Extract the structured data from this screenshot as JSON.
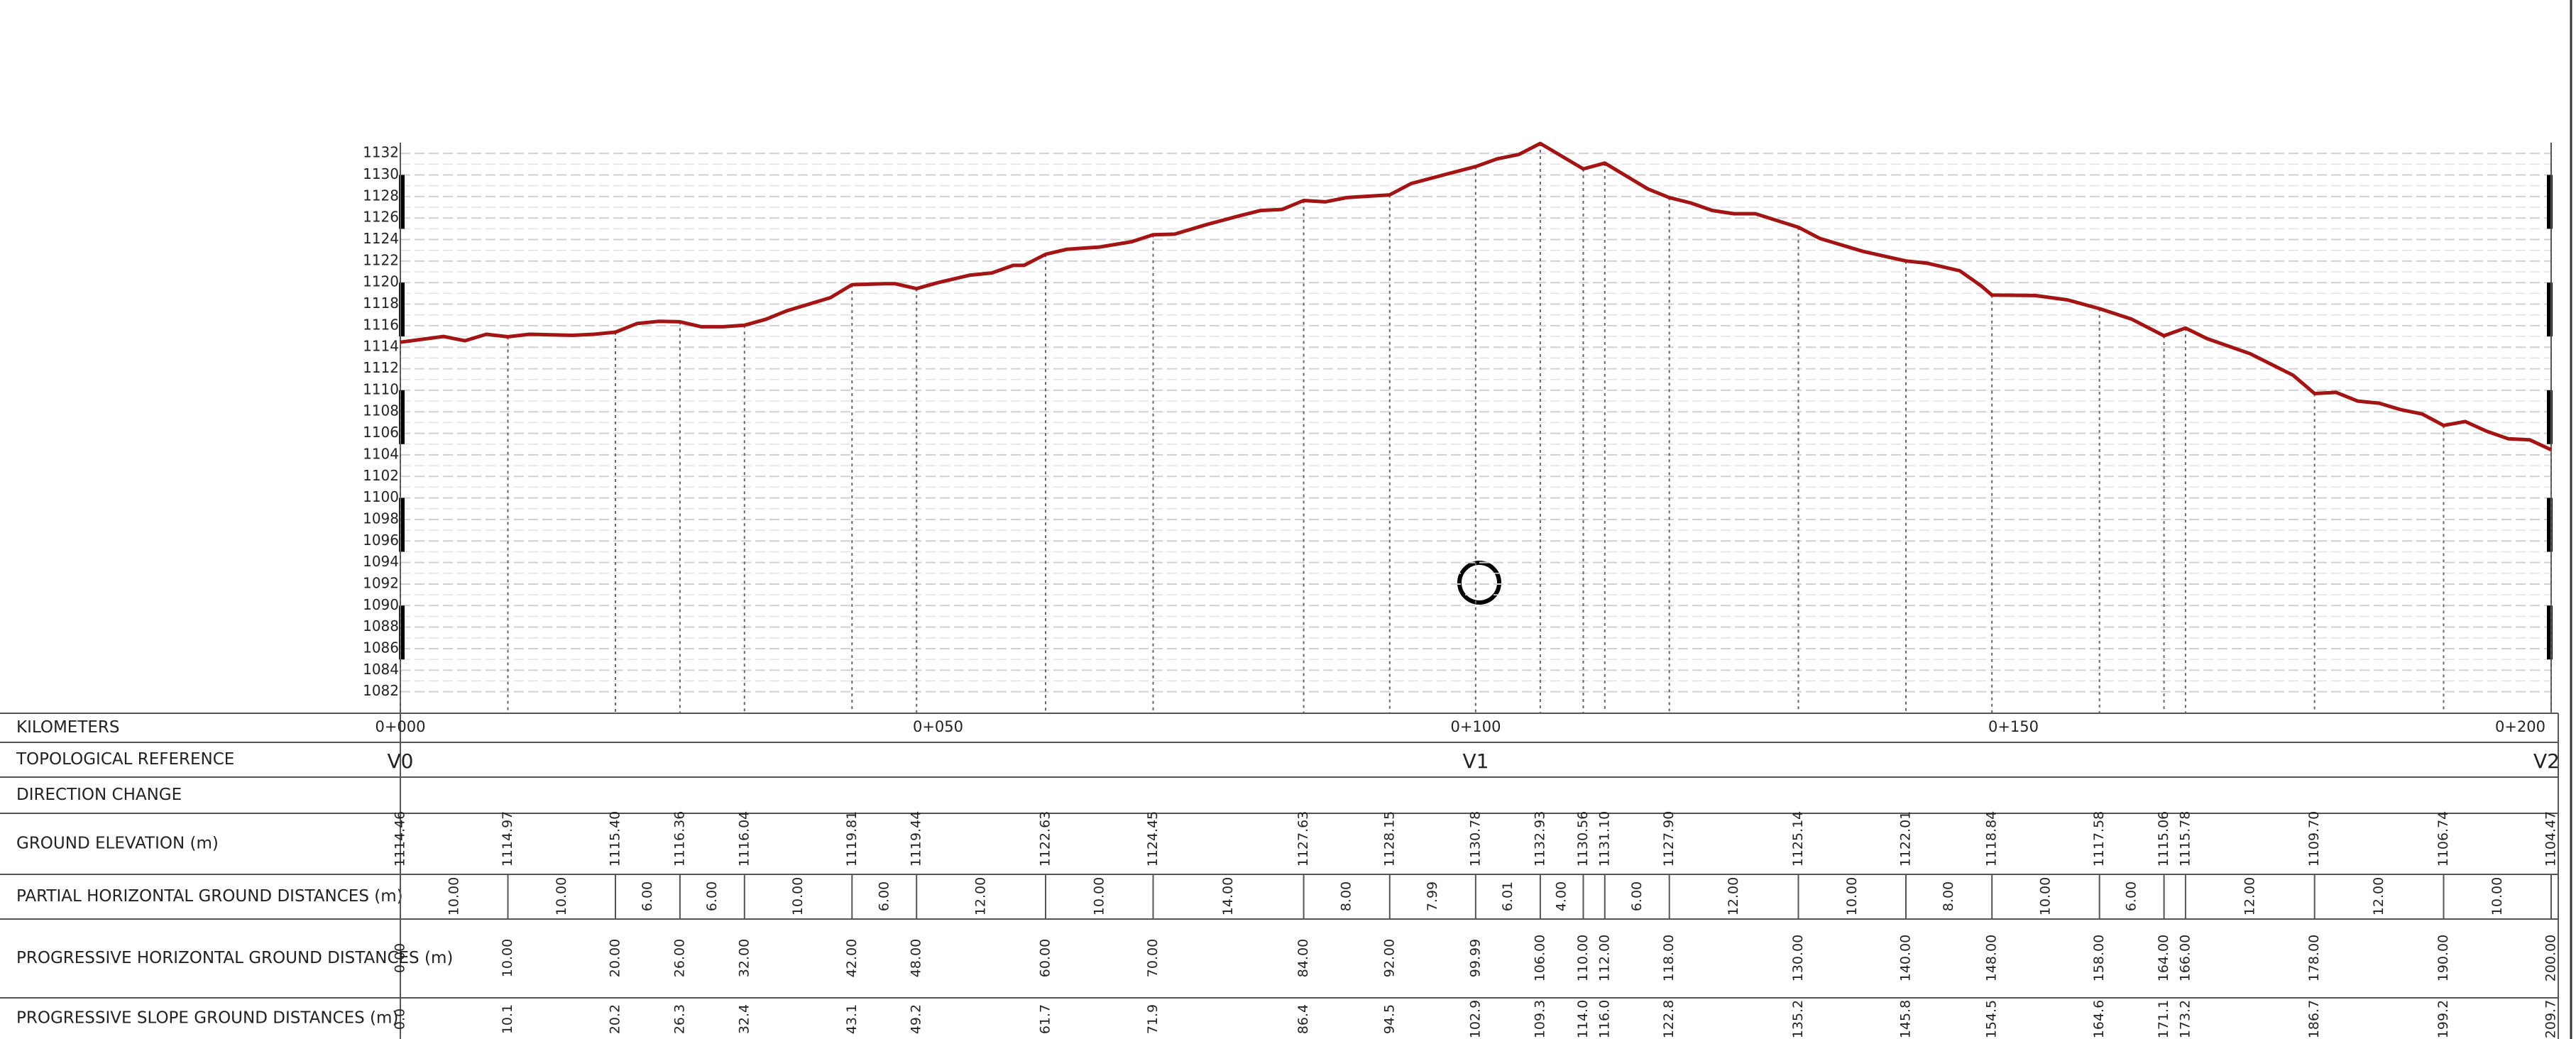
{
  "chart_data": {
    "type": "line",
    "x": [
      0,
      4,
      6,
      8,
      10,
      12,
      16,
      18,
      20,
      22,
      24,
      26,
      28,
      30,
      32,
      34,
      36,
      40,
      42,
      45,
      46,
      48,
      50,
      53,
      55,
      57,
      58,
      60,
      62,
      65,
      68,
      70,
      72,
      75,
      78,
      80,
      82,
      84,
      86,
      88,
      92,
      94,
      97,
      99.99,
      102,
      104,
      106,
      110,
      112,
      114,
      116,
      118,
      120,
      122,
      124,
      126,
      130,
      132,
      136,
      140,
      142,
      145,
      147,
      148,
      152,
      155,
      158,
      161,
      164,
      166,
      168,
      172,
      174,
      176,
      178,
      180,
      182,
      184,
      186,
      188,
      190,
      192,
      194,
      196,
      198,
      200
    ],
    "values": [
      1114.46,
      1115.0,
      1114.6,
      1115.2,
      1114.97,
      1115.2,
      1115.1,
      1115.2,
      1115.4,
      1116.2,
      1116.4,
      1116.36,
      1115.9,
      1115.9,
      1116.04,
      1116.6,
      1117.4,
      1118.6,
      1119.81,
      1119.9,
      1119.9,
      1119.44,
      1120.0,
      1120.7,
      1120.9,
      1121.6,
      1121.6,
      1122.63,
      1123.1,
      1123.3,
      1123.8,
      1124.45,
      1124.5,
      1125.4,
      1126.2,
      1126.7,
      1126.8,
      1127.63,
      1127.5,
      1127.9,
      1128.15,
      1129.2,
      1130.0,
      1130.78,
      1131.5,
      1131.9,
      1132.93,
      1130.56,
      1131.1,
      1129.9,
      1128.7,
      1127.9,
      1127.4,
      1126.7,
      1126.4,
      1126.4,
      1125.14,
      1124.1,
      1122.9,
      1122.01,
      1121.8,
      1121.1,
      1119.7,
      1118.84,
      1118.8,
      1118.4,
      1117.58,
      1116.6,
      1115.06,
      1115.78,
      1114.8,
      1113.4,
      1112.4,
      1111.4,
      1109.7,
      1109.8,
      1109.0,
      1108.8,
      1108.2,
      1107.8,
      1106.74,
      1107.1,
      1106.2,
      1105.5,
      1105.4,
      1104.47
    ],
    "color": "#a31515",
    "xlim": [
      0,
      200
    ],
    "ylim": [
      1080,
      1133
    ],
    "yticks": [
      1082,
      1084,
      1086,
      1088,
      1090,
      1092,
      1094,
      1096,
      1098,
      1100,
      1102,
      1104,
      1106,
      1108,
      1110,
      1112,
      1114,
      1116,
      1118,
      1120,
      1122,
      1124,
      1126,
      1128,
      1130,
      1132
    ],
    "xticks": [
      {
        "value": 0,
        "label": "0+000"
      },
      {
        "value": 50,
        "label": "0+050"
      },
      {
        "value": 100,
        "label": "0+100"
      },
      {
        "value": 150,
        "label": "0+150"
      },
      {
        "value": 200,
        "label": "0+200"
      }
    ],
    "grid": true
  },
  "table": {
    "row_labels": [
      "KILOMETERS",
      "TOPOLOGICAL REFERENCE",
      "DIRECTION CHANGE",
      "GROUND ELEVATION (m)",
      "PARTIAL HORIZONTAL GROUND DISTANCES (m)",
      "PROGRESSIVE HORIZONTAL GROUND DISTANCES (m)",
      "PROGRESSIVE SLOPE GROUND DISTANCES (m)"
    ],
    "topological_references": [
      "V0",
      "V1",
      "V2"
    ],
    "ground_elevation": [
      "1114.46",
      "1114.97",
      "1115.40",
      "1116.36",
      "1116.04",
      "1119.81",
      "1119.44",
      "1122.63",
      "1124.45",
      "1127.63",
      "1128.15",
      "1130.78",
      "1132.93",
      "1130.56",
      "1131.10",
      "1127.90",
      "1125.14",
      "1122.01",
      "1118.84",
      "1117.58",
      "1115.06",
      "1115.78",
      "1109.70",
      "1106.74",
      "1104.47"
    ],
    "partial_distances": [
      "10.00",
      "10.00",
      "6.00",
      "6.00",
      "10.00",
      "6.00",
      "12.00",
      "10.00",
      "14.00",
      "8.00",
      "7.99",
      "6.01",
      "4.00",
      null,
      "6.00",
      "12.00",
      "10.00",
      "8.00",
      "10.00",
      "6.00",
      null,
      "12.00",
      "12.00",
      "10.00"
    ],
    "progressive_horizontal": {
      "values": [
        0,
        10,
        20,
        26,
        32,
        42,
        48,
        60,
        70,
        84,
        92,
        99.99,
        106,
        110,
        112,
        118,
        130,
        140,
        148,
        158,
        164,
        166,
        178,
        190,
        200
      ],
      "value_labels": [
        "0.00",
        "10.00",
        "20.00",
        "26.00",
        "32.00",
        "42.00",
        "48.00",
        "60.00",
        "70.00",
        "84.00",
        "92.00",
        "99.99",
        "106.00",
        "110.00",
        "112.00",
        "118.00",
        "130.00",
        "140.00",
        "148.00",
        "158.00",
        "164.00",
        "166.00",
        "178.00",
        "190.00",
        "200.00"
      ]
    },
    "slope_distances": [
      "0.0",
      "10.1",
      "20.2",
      "26.3",
      "32.4",
      "43.1",
      "49.2",
      "61.7",
      "71.9",
      "86.4",
      "94.5",
      "102.9",
      "109.3",
      "114.0",
      "116.0",
      "122.8",
      "135.2",
      "145.8",
      "154.5",
      "164.6",
      "171.1",
      "173.2",
      "186.7",
      "199.2",
      "209.7"
    ]
  }
}
